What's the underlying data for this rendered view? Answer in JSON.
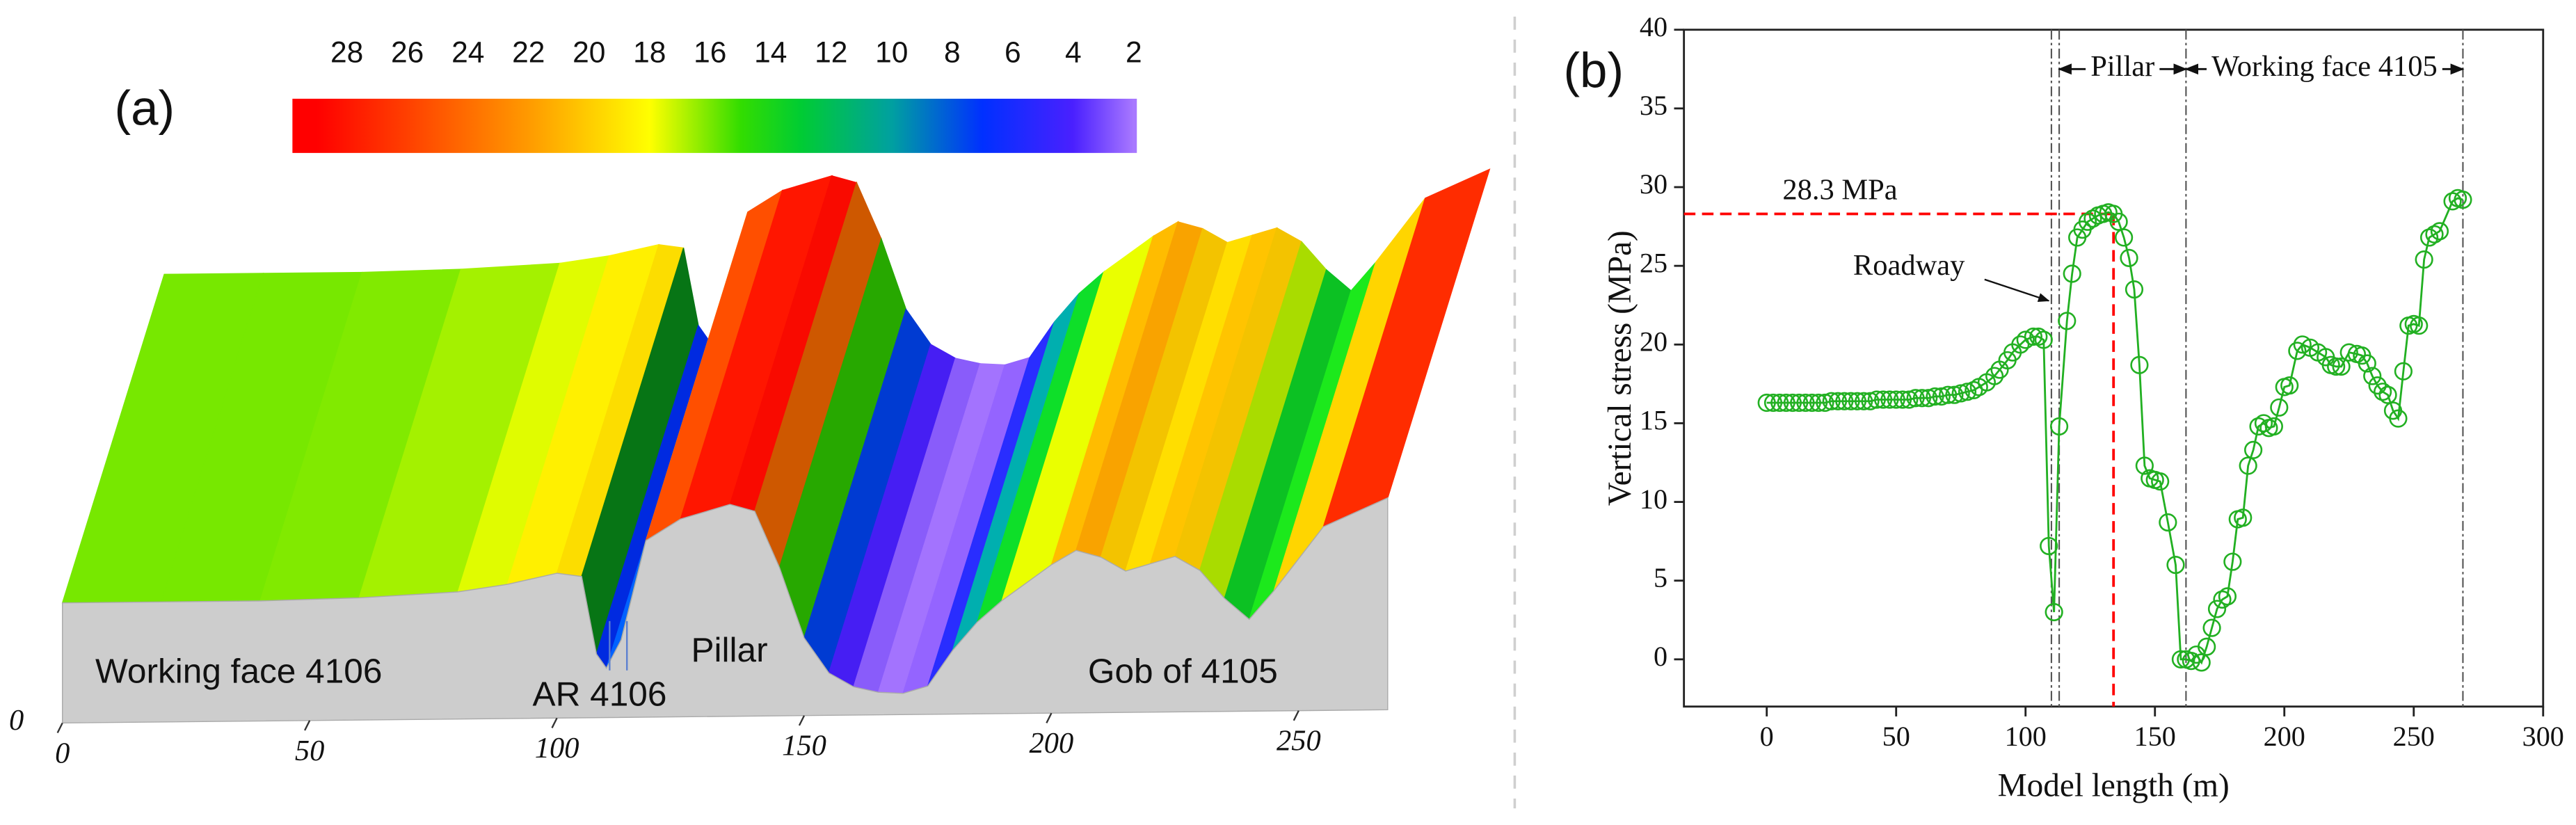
{
  "chart_data": [
    {
      "type": "surface",
      "title": "(a)",
      "x": [
        0,
        20,
        40,
        60,
        80,
        90,
        100,
        105,
        108,
        110,
        113,
        118,
        125,
        135,
        140,
        145,
        150,
        155,
        160,
        165,
        170,
        175,
        180,
        185,
        190,
        200,
        205,
        210,
        215,
        220,
        225,
        230,
        235,
        240,
        245,
        255,
        268
      ],
      "values": [
        16,
        16,
        16,
        16.3,
        17,
        18,
        19.5,
        19,
        8,
        6,
        10,
        24,
        27,
        29,
        28,
        20,
        10,
        5,
        3,
        2.2,
        2,
        3,
        8,
        12,
        15,
        20,
        22,
        21,
        19,
        20,
        21,
        19,
        15,
        12,
        16,
        25,
        29
      ],
      "xticks": [
        0,
        50,
        100,
        150,
        200,
        250
      ],
      "zticks": [
        0
      ],
      "annotations": [
        "Working face 4106",
        "AR 4106",
        "Pillar",
        "Gob of 4105"
      ],
      "colorbar": {
        "clim": [
          29.8,
          1.9
        ],
        "ticks": [
          28,
          26,
          24,
          22,
          20,
          18,
          16,
          14,
          12,
          10,
          8,
          6,
          4,
          2
        ]
      },
      "colormap": [
        {
          "value": 29,
          "color": "#ff0000"
        },
        {
          "value": 26,
          "color": "#ff4000"
        },
        {
          "value": 22,
          "color": "#ff9a00"
        },
        {
          "value": 18,
          "color": "#ffff00"
        },
        {
          "value": 15,
          "color": "#33dd00"
        },
        {
          "value": 13,
          "color": "#00cc33"
        },
        {
          "value": 10,
          "color": "#00a0a0"
        },
        {
          "value": 7,
          "color": "#0030ff"
        },
        {
          "value": 4,
          "color": "#4a20ff"
        },
        {
          "value": 2,
          "color": "#a878ff"
        }
      ],
      "side_color": "#cdcdcd"
    },
    {
      "type": "line",
      "title": "(b)",
      "xlabel": "Model length (m)",
      "ylabel": "Vertical stress (MPa)",
      "xlim": [
        -32,
        300
      ],
      "ylim": [
        -3,
        40
      ],
      "xticks": [
        0,
        50,
        100,
        150,
        200,
        250,
        300
      ],
      "yticks": [
        0,
        5,
        10,
        15,
        20,
        25,
        30,
        35,
        40
      ],
      "series": [
        {
          "color": "#22b022",
          "x": [
            0,
            2.5,
            5,
            7.5,
            10,
            12.5,
            15,
            17.5,
            20,
            22.5,
            25,
            27.5,
            30,
            32.5,
            35,
            37.5,
            40,
            42.5,
            45,
            47.5,
            50,
            52.5,
            55,
            57.5,
            60,
            62.5,
            65,
            67.5,
            70,
            72.5,
            75,
            77.5,
            80,
            82,
            85,
            88,
            90,
            93,
            95,
            98,
            100,
            103,
            105,
            107,
            109,
            111,
            113,
            116,
            118,
            120,
            122,
            124,
            126,
            128,
            130,
            132,
            134,
            136,
            138,
            140,
            142,
            144,
            146,
            148,
            150,
            152,
            155,
            158,
            160,
            162,
            164,
            166,
            168,
            170,
            172,
            174,
            176,
            178,
            180,
            182,
            184,
            186,
            188,
            190,
            192,
            194,
            196,
            198,
            200,
            202,
            205,
            207,
            210,
            213,
            216,
            218,
            220,
            222,
            225,
            228,
            230,
            232,
            234,
            236,
            238,
            240,
            242,
            244,
            246,
            248,
            250,
            252,
            254,
            256,
            258,
            260,
            265,
            267,
            269
          ],
          "values": [
            16.3,
            16.3,
            16.3,
            16.3,
            16.3,
            16.3,
            16.3,
            16.3,
            16.3,
            16.3,
            16.4,
            16.4,
            16.4,
            16.4,
            16.4,
            16.4,
            16.4,
            16.5,
            16.5,
            16.5,
            16.5,
            16.5,
            16.5,
            16.6,
            16.6,
            16.6,
            16.7,
            16.7,
            16.8,
            16.8,
            16.9,
            17,
            17.1,
            17.3,
            17.6,
            18,
            18.4,
            19,
            19.5,
            20,
            20.3,
            20.5,
            20.5,
            20.3,
            7.2,
            3,
            14.8,
            21.5,
            24.5,
            26.8,
            27.3,
            27.8,
            28,
            28.2,
            28.3,
            28.4,
            28.3,
            27.8,
            26.8,
            25.5,
            23.5,
            18.7,
            12.3,
            11.5,
            11.4,
            11.3,
            8.7,
            6,
            0,
            0,
            -0.1,
            0.3,
            -0.2,
            0.8,
            2,
            3.2,
            3.8,
            4,
            6.2,
            8.9,
            9,
            12.3,
            13.3,
            14.8,
            15,
            14.7,
            14.8,
            16,
            17.3,
            17.4,
            19.6,
            20,
            19.8,
            19.5,
            19.2,
            18.7,
            18.6,
            18.6,
            19.5,
            19.4,
            19.3,
            18.8,
            18,
            17.4,
            17,
            16.8,
            15.8,
            15.3,
            18.3,
            21.2,
            21.3,
            21.2,
            25.4,
            26.8,
            27,
            27.2,
            29.1,
            29.3,
            29.2
          ]
        }
      ],
      "vlines": [
        110,
        113,
        162,
        269
      ],
      "reference": {
        "label": "28.3 MPa",
        "y": 28.3,
        "x": 134,
        "color": "#ff0000"
      },
      "spans": [
        {
          "label": "Pillar",
          "from": 113,
          "to": 162,
          "y": 37.5
        },
        {
          "label": "Working face 4105",
          "from": 162,
          "to": 269,
          "y": 37.5
        }
      ],
      "annotations": [
        "Roadway"
      ]
    }
  ]
}
